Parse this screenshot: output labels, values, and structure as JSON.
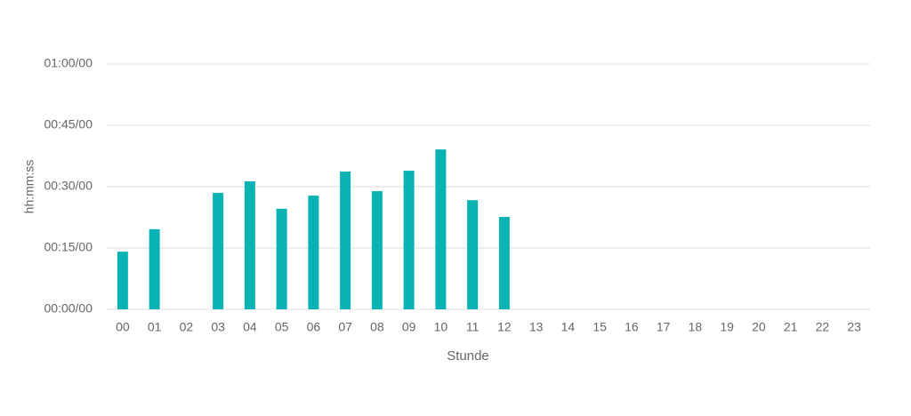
{
  "chart_data": {
    "type": "bar",
    "y_label": "hh:mm:ss",
    "x_label": "Stunde",
    "categories": [
      "00",
      "01",
      "02",
      "03",
      "04",
      "05",
      "06",
      "07",
      "08",
      "09",
      "10",
      "11",
      "12",
      "13",
      "14",
      "15",
      "16",
      "17",
      "18",
      "19",
      "20",
      "21",
      "22",
      "23"
    ],
    "values": [
      14.1,
      19.6,
      null,
      28.5,
      31.3,
      24.6,
      27.8,
      33.7,
      28.9,
      33.9,
      39.1,
      26.7,
      22.6,
      null,
      null,
      null,
      null,
      null,
      null,
      null,
      null,
      null,
      null,
      null
    ],
    "color": "#0ab3b3",
    "ylim": [
      0,
      60
    ],
    "yticks": [
      {
        "value": 0,
        "label": "00:00/00"
      },
      {
        "value": 15,
        "label": "00:15/00"
      },
      {
        "value": 30,
        "label": "00:30/00"
      },
      {
        "value": 45,
        "label": "00:45/00"
      },
      {
        "value": 60,
        "label": "01:00/00"
      }
    ],
    "grid": true
  }
}
